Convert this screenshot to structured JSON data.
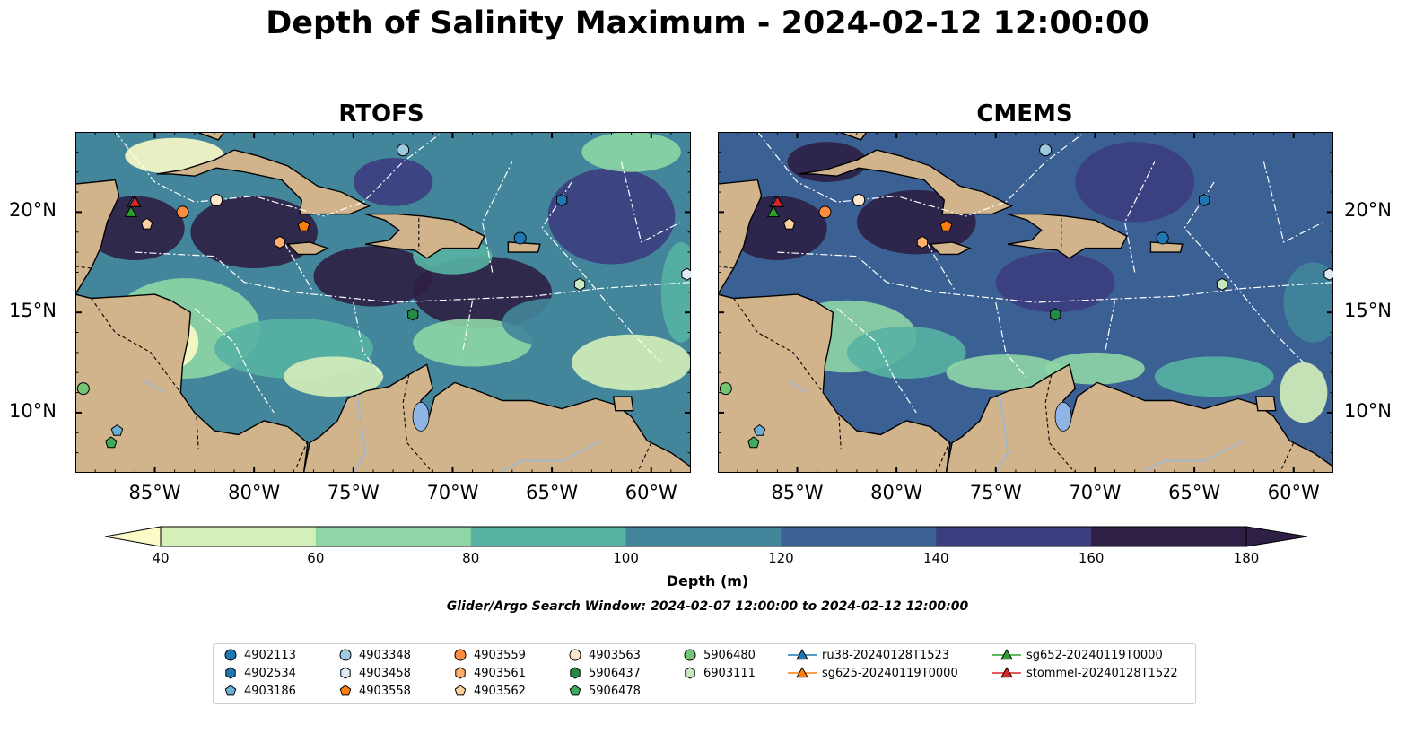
{
  "title": "Depth of Salinity Maximum - 2024-02-12 12:00:00",
  "panels": [
    {
      "title": "RTOFS",
      "palette": "shallow"
    },
    {
      "title": "CMEMS",
      "palette": "deep"
    }
  ],
  "map_extent": {
    "lon": [
      -89,
      -58
    ],
    "lat": [
      7,
      24
    ]
  },
  "axes": {
    "lon_ticks": [
      {
        "value": -85,
        "label": "85°W"
      },
      {
        "value": -80,
        "label": "80°W"
      },
      {
        "value": -75,
        "label": "75°W"
      },
      {
        "value": -70,
        "label": "70°W"
      },
      {
        "value": -65,
        "label": "65°W"
      },
      {
        "value": -60,
        "label": "60°W"
      }
    ],
    "lat_ticks": [
      {
        "value": 20,
        "label": "20°N"
      },
      {
        "value": 15,
        "label": "15°N"
      },
      {
        "value": 10,
        "label": "10°N"
      }
    ]
  },
  "colors": {
    "land": "#d2b48c",
    "river": "#9cb8d8",
    "lake": "#8fb4e6",
    "palette": [
      "#fbfbc7",
      "#d5efb9",
      "#8ed6a5",
      "#56b3a2",
      "#43869b",
      "#3b6194",
      "#3c3d7e",
      "#2e1f44"
    ]
  },
  "colorbar": {
    "title": "Depth (m)",
    "ticks": [
      "40",
      "60",
      "80",
      "100",
      "120",
      "140",
      "160",
      "180"
    ],
    "range": [
      40,
      180
    ],
    "extend": "both"
  },
  "search_window": "Glider/Argo Search Window: 2024-02-07 12:00:00 to 2024-02-12 12:00:00",
  "legend": {
    "columns": [
      [
        {
          "label": "4902113",
          "marker": "circle",
          "color": "#1f77b4"
        },
        {
          "label": "4902534",
          "marker": "hexagon",
          "color": "#1f77b4"
        },
        {
          "label": "4903186",
          "marker": "pentagon",
          "color": "#6baed6"
        }
      ],
      [
        {
          "label": "4903348",
          "marker": "circle",
          "color": "#9ecae1"
        },
        {
          "label": "4903458",
          "marker": "hexagon",
          "color": "#deebf7"
        },
        {
          "label": "4903558",
          "marker": "pentagon",
          "color": "#ff7f0e"
        }
      ],
      [
        {
          "label": "4903559",
          "marker": "circle",
          "color": "#fd8d3c"
        },
        {
          "label": "4903561",
          "marker": "hexagon",
          "color": "#fdae6b"
        },
        {
          "label": "4903562",
          "marker": "pentagon",
          "color": "#fdd0a2"
        }
      ],
      [
        {
          "label": "4903563",
          "marker": "circle",
          "color": "#fee6ce"
        },
        {
          "label": "5906437",
          "marker": "hexagon",
          "color": "#238b45"
        },
        {
          "label": "5906478",
          "marker": "pentagon",
          "color": "#41ab5d"
        }
      ],
      [
        {
          "label": "5906480",
          "marker": "circle",
          "color": "#74c476"
        },
        {
          "label": "6903111",
          "marker": "hexagon",
          "color": "#c7e9c0"
        }
      ],
      [
        {
          "label": "ru38-20240128T1523",
          "marker": "triangle-line",
          "color": "#1f77b4"
        },
        {
          "label": "sg625-20240119T0000",
          "marker": "triangle-line",
          "color": "#ff7f0e"
        }
      ],
      [
        {
          "label": "sg652-20240119T0000",
          "marker": "triangle-line",
          "color": "#2ca02c"
        },
        {
          "label": "stommel-20240128T1522",
          "marker": "triangle-line",
          "color": "#d62728"
        }
      ]
    ]
  },
  "markers": [
    {
      "id": "4903348",
      "lon": -72.5,
      "lat": 23.1
    },
    {
      "id": "4902534",
      "lon": -64.5,
      "lat": 20.6
    },
    {
      "id": "4902113",
      "lon": -66.6,
      "lat": 18.7
    },
    {
      "id": "4903563",
      "lon": -81.9,
      "lat": 20.6
    },
    {
      "id": "4903559",
      "lon": -83.6,
      "lat": 20.0
    },
    {
      "id": "4903562",
      "lon": -85.4,
      "lat": 19.4
    },
    {
      "id": "4903558",
      "lon": -77.5,
      "lat": 19.3
    },
    {
      "id": "4903561",
      "lon": -78.7,
      "lat": 18.5
    },
    {
      "id": "4903458",
      "lon": -58.2,
      "lat": 16.9
    },
    {
      "id": "6903111",
      "lon": -63.6,
      "lat": 16.4
    },
    {
      "id": "5906437",
      "lon": -72.0,
      "lat": 14.9
    },
    {
      "id": "5906480",
      "lon": -88.6,
      "lat": 11.2
    },
    {
      "id": "4903186",
      "lon": -86.9,
      "lat": 9.1
    },
    {
      "id": "5906478",
      "lon": -87.2,
      "lat": 8.5
    },
    {
      "id": "ru38-20240128T1523",
      "lon": -86.1,
      "lat": 20.5
    },
    {
      "id": "sg625-20240119T0000",
      "lon": -86.0,
      "lat": 20.5
    },
    {
      "id": "sg652-20240119T0000",
      "lon": -86.2,
      "lat": 20.0
    },
    {
      "id": "stommel-20240128T1522",
      "lon": -86.0,
      "lat": 20.5
    }
  ]
}
